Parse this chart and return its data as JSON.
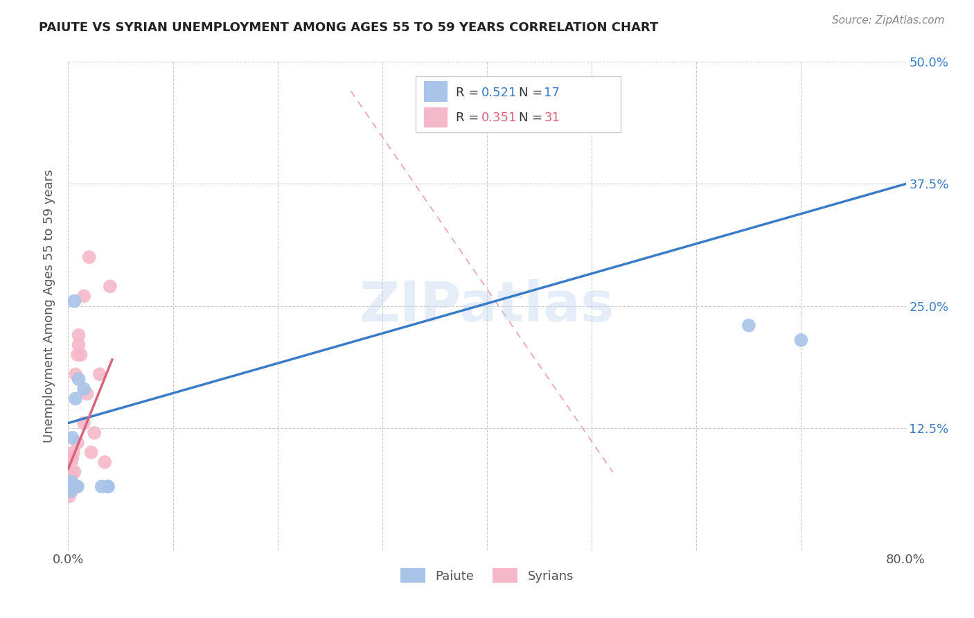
{
  "title": "PAIUTE VS SYRIAN UNEMPLOYMENT AMONG AGES 55 TO 59 YEARS CORRELATION CHART",
  "source": "Source: ZipAtlas.com",
  "ylabel": "Unemployment Among Ages 55 to 59 years",
  "paiute_color": "#a8c4e8",
  "syrian_color": "#f5b8c8",
  "paiute_line_color": "#3a7cc7",
  "syrian_line_color": "#d9637a",
  "diagonal_color": "#e8a0b0",
  "R_paiute": 0.521,
  "N_paiute": 17,
  "R_syrian": 0.351,
  "N_syrian": 31,
  "xlim": [
    0.0,
    0.8
  ],
  "ylim": [
    0.0,
    0.5
  ],
  "watermark": "ZIPatlas",
  "background_color": "#ffffff",
  "grid_color": "#cccccc",
  "paiute_x": [
    0.002,
    0.003,
    0.003,
    0.004,
    0.004,
    0.005,
    0.006,
    0.007,
    0.008,
    0.009,
    0.01,
    0.015,
    0.032,
    0.038,
    0.038,
    0.65,
    0.7
  ],
  "paiute_y": [
    0.06,
    0.065,
    0.07,
    0.065,
    0.115,
    0.065,
    0.255,
    0.155,
    0.065,
    0.065,
    0.175,
    0.165,
    0.065,
    0.065,
    0.065,
    0.23,
    0.215
  ],
  "syrian_x": [
    0.001,
    0.001,
    0.002,
    0.002,
    0.003,
    0.003,
    0.003,
    0.003,
    0.004,
    0.004,
    0.004,
    0.005,
    0.005,
    0.006,
    0.006,
    0.007,
    0.008,
    0.009,
    0.009,
    0.01,
    0.01,
    0.012,
    0.015,
    0.015,
    0.018,
    0.02,
    0.022,
    0.025,
    0.03,
    0.035,
    0.04
  ],
  "syrian_y": [
    0.055,
    0.065,
    0.06,
    0.08,
    0.06,
    0.065,
    0.075,
    0.09,
    0.068,
    0.08,
    0.095,
    0.065,
    0.1,
    0.065,
    0.08,
    0.18,
    0.065,
    0.11,
    0.2,
    0.21,
    0.22,
    0.2,
    0.13,
    0.26,
    0.16,
    0.3,
    0.1,
    0.12,
    0.18,
    0.09,
    0.27
  ],
  "paiute_line_x": [
    0.0,
    0.8
  ],
  "paiute_line_y": [
    0.13,
    0.375
  ],
  "syrian_line_x": [
    0.0,
    0.042
  ],
  "syrian_line_y": [
    0.083,
    0.195
  ],
  "diag_line_x": [
    0.27,
    0.52
  ],
  "diag_line_y": [
    0.47,
    0.08
  ]
}
